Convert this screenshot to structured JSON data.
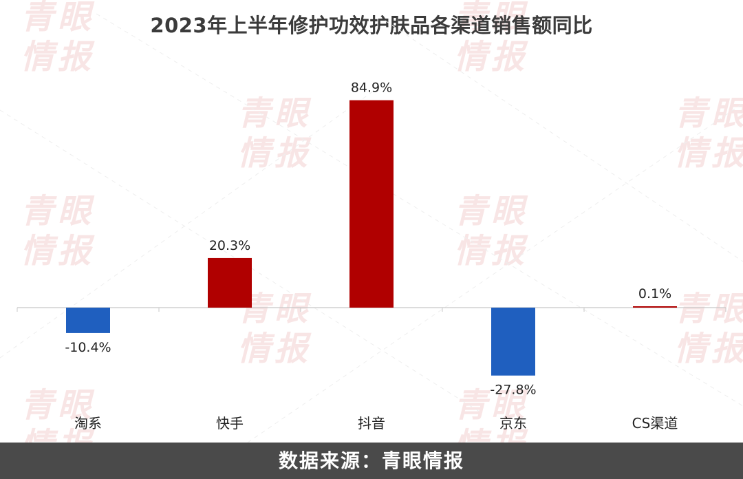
{
  "watermark_text": "青眼\n情报",
  "colors": {
    "positive": "#b00000",
    "negative": "#1f5fbf",
    "footer_bg": "#4a4a4a",
    "title": "#3b3b3b"
  },
  "chart_data": {
    "type": "bar",
    "title": "2023年上半年修护功效护肤品各渠道销售额同比",
    "categories": [
      "淘系",
      "快手",
      "抖音",
      "京东",
      "CS渠道"
    ],
    "values": [
      -10.4,
      20.3,
      84.9,
      -27.8,
      0.1
    ],
    "data_labels": [
      "-10.4%",
      "20.3%",
      "84.9%",
      "-27.8%",
      "0.1%"
    ],
    "unit": "%",
    "ylim": [
      -30,
      90
    ],
    "grid": false,
    "legend": "none"
  },
  "footer": {
    "source": "数据来源：青眼情报"
  }
}
